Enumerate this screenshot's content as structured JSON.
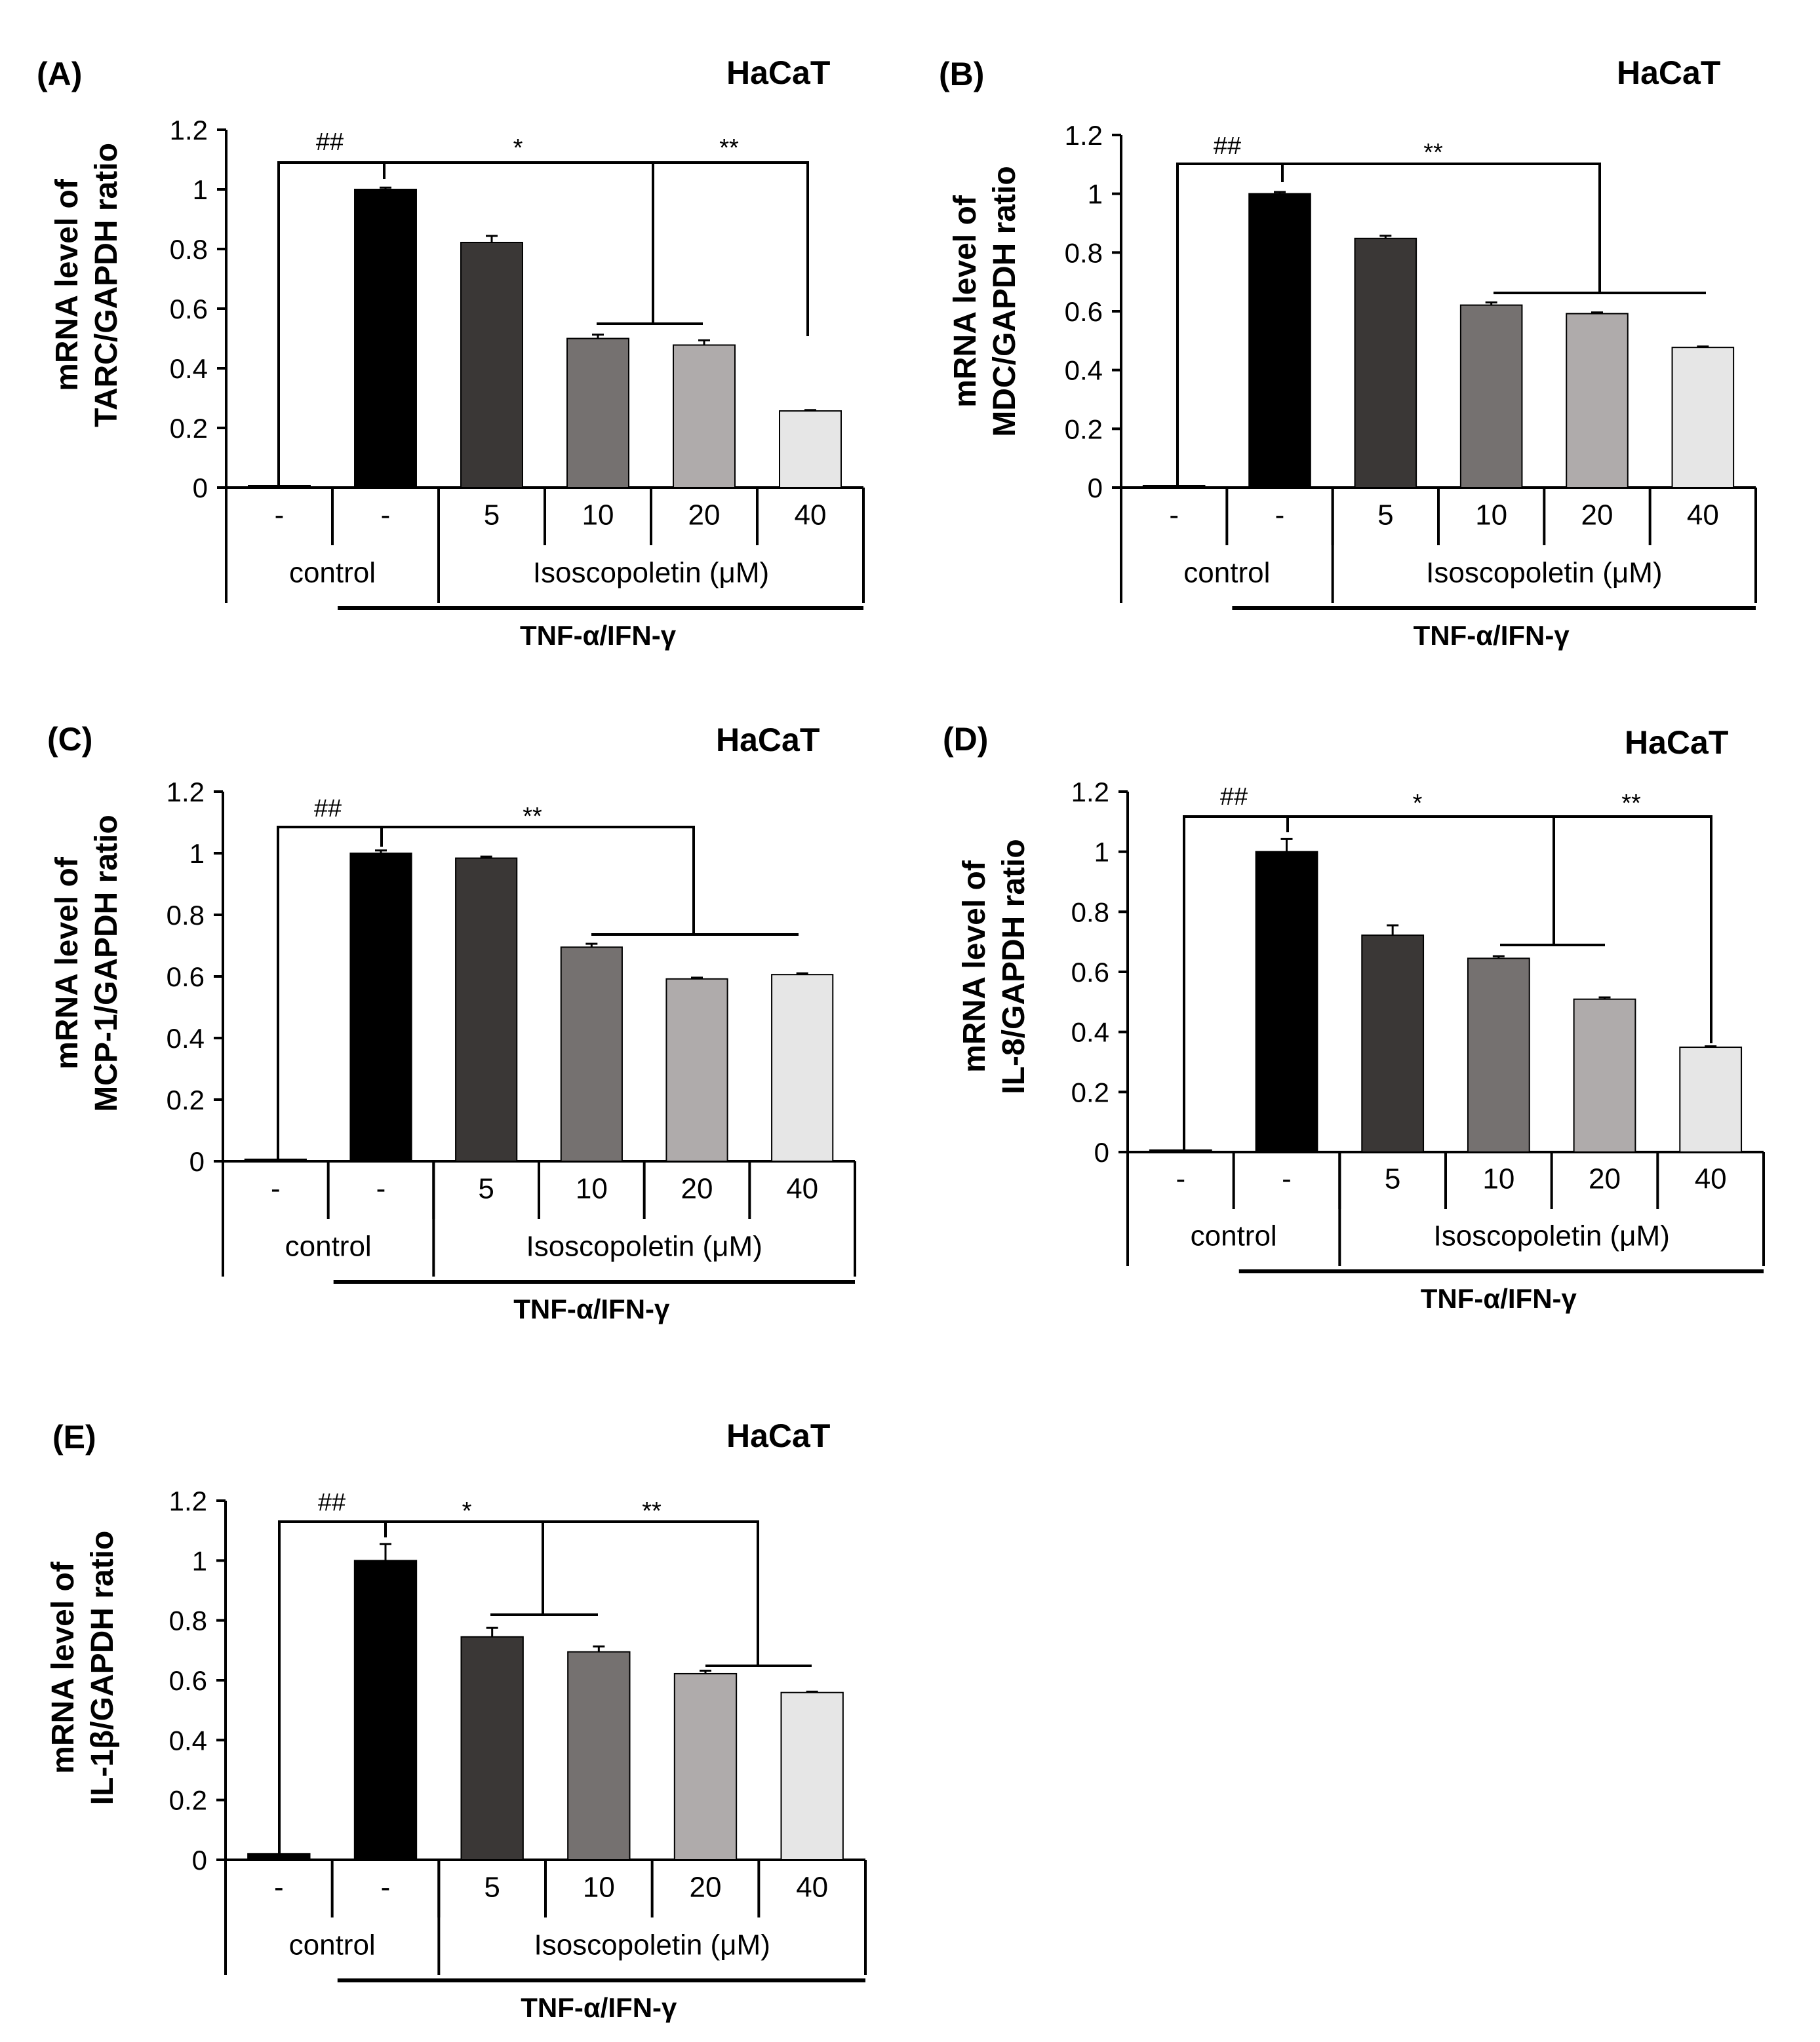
{
  "figure": {
    "bar_colors": [
      "#000000",
      "#000000",
      "#3a3736",
      "#757170",
      "#afabab",
      "#e6e6e6"
    ],
    "group_control": "control",
    "group_treatment": "Isoscopoletin (μM)",
    "stimulus_label": "TNF-α/IFN-γ"
  },
  "chart_data": [
    {
      "type": "bar",
      "panel": "(A)",
      "cell_line": "HaCaT",
      "ylabel_line1": "mRNA level of",
      "ylabel_line2": "TARC/GAPDH ratio",
      "categories": [
        "-",
        "-",
        "5",
        "10",
        "20",
        "40"
      ],
      "values": [
        0.005,
        1.0,
        0.822,
        0.5,
        0.478,
        0.257
      ],
      "errors": [
        0,
        0.006,
        0.022,
        0.013,
        0.016,
        0.003
      ],
      "ylim": [
        0,
        1.2
      ],
      "yticks": [
        "0",
        "0.2",
        "0.4",
        "0.6",
        "0.8",
        "1",
        "1.2"
      ],
      "sig_control": "##",
      "sig_marks": [
        "*",
        "**"
      ]
    },
    {
      "type": "bar",
      "panel": "(B)",
      "cell_line": "HaCaT",
      "ylabel_line1": "mRNA level of",
      "ylabel_line2": "MDC/GAPDH ratio",
      "categories": [
        "-",
        "-",
        "5",
        "10",
        "20",
        "40"
      ],
      "values": [
        0,
        1.0,
        0.848,
        0.621,
        0.592,
        0.477
      ],
      "errors": [
        0,
        0.006,
        0.009,
        0.009,
        0.004,
        0.003
      ],
      "ylim": [
        0,
        1.2
      ],
      "yticks": [
        "0",
        "0.2",
        "0.4",
        "0.6",
        "0.8",
        "1",
        "1.2"
      ],
      "sig_control": "##",
      "sig_marks": [
        "**"
      ]
    },
    {
      "type": "bar",
      "panel": "(C)",
      "cell_line": "HaCaT",
      "ylabel_line1": "mRNA level of",
      "ylabel_line2": "MCP-1/GAPDH ratio",
      "categories": [
        "-",
        "-",
        "5",
        "10",
        "20",
        "40"
      ],
      "values": [
        0,
        1.0,
        0.984,
        0.695,
        0.592,
        0.606
      ],
      "errors": [
        0,
        0.009,
        0.005,
        0.011,
        0.004,
        0.004
      ],
      "ylim": [
        0,
        1.2
      ],
      "yticks": [
        "0",
        "0.2",
        "0.4",
        "0.6",
        "0.8",
        "1",
        "1.2"
      ],
      "sig_control": "##",
      "sig_marks": [
        "**"
      ]
    },
    {
      "type": "bar",
      "panel": "(D)",
      "cell_line": "HaCaT",
      "ylabel_line1": "mRNA level of",
      "ylabel_line2": "IL-8/GAPDH ratio",
      "categories": [
        "-",
        "-",
        "5",
        "10",
        "20",
        "40"
      ],
      "values": [
        0.005,
        1.0,
        0.722,
        0.645,
        0.509,
        0.349
      ],
      "errors": [
        0,
        0.042,
        0.033,
        0.007,
        0.006,
        0.003
      ],
      "ylim": [
        0,
        1.2
      ],
      "yticks": [
        "0",
        "0.2",
        "0.4",
        "0.6",
        "0.8",
        "1",
        "1.2"
      ],
      "sig_control": "##",
      "sig_marks": [
        "*",
        "**"
      ]
    },
    {
      "type": "bar",
      "panel": "(E)",
      "cell_line": "HaCaT",
      "ylabel_line1": "mRNA level of",
      "ylabel_line2": "IL-1β/GAPDH ratio",
      "categories": [
        "-",
        "-",
        "5",
        "10",
        "20",
        "40"
      ],
      "values": [
        0.02,
        1.0,
        0.745,
        0.695,
        0.622,
        0.559
      ],
      "errors": [
        0,
        0.055,
        0.03,
        0.018,
        0.01,
        0.003
      ],
      "ylim": [
        0,
        1.2
      ],
      "yticks": [
        "0",
        "0.2",
        "0.4",
        "0.6",
        "0.8",
        "1",
        "1.2"
      ],
      "sig_control": "##",
      "sig_marks": [
        "*",
        "**"
      ]
    }
  ]
}
